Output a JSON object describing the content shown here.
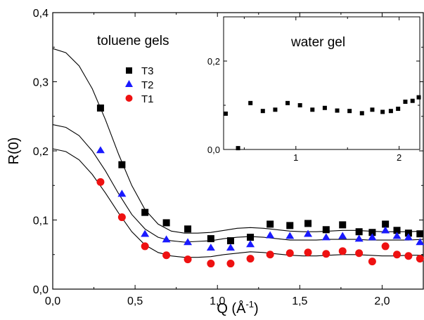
{
  "chart_data": [
    {
      "type": "scatter",
      "xlabel": "Q (Å",
      "xlabel_sup": "-1",
      "xlabel_close": ")",
      "ylabel": "R(0)",
      "xlim": [
        0.0,
        2.25
      ],
      "ylim": [
        0.0,
        0.4
      ],
      "x_ticks": [
        {
          "value": 0.0,
          "label": "0,0"
        },
        {
          "value": 0.5,
          "label": "0,5"
        },
        {
          "value": 1.0,
          "label": "1,0"
        },
        {
          "value": 1.5,
          "label": "1,5"
        },
        {
          "value": 2.0,
          "label": "2,0"
        }
      ],
      "y_ticks": [
        {
          "value": 0.0,
          "label": "0,0"
        },
        {
          "value": 0.1,
          "label": "0,1"
        },
        {
          "value": 0.2,
          "label": "0,2"
        },
        {
          "value": 0.3,
          "label": "0,3"
        },
        {
          "value": 0.4,
          "label": "0,4"
        }
      ],
      "annotation": "toluene gels",
      "legend_position": "top-left",
      "series": [
        {
          "name": "T3",
          "marker": "square",
          "color": "#000000",
          "points": [
            [
              0.29,
              0.262
            ],
            [
              0.42,
              0.18
            ],
            [
              0.56,
              0.111
            ],
            [
              0.69,
              0.096
            ],
            [
              0.82,
              0.087
            ],
            [
              0.96,
              0.073
            ],
            [
              1.08,
              0.07
            ],
            [
              1.2,
              0.075
            ],
            [
              1.32,
              0.094
            ],
            [
              1.44,
              0.092
            ],
            [
              1.55,
              0.095
            ],
            [
              1.66,
              0.086
            ],
            [
              1.76,
              0.093
            ],
            [
              1.86,
              0.083
            ],
            [
              1.94,
              0.082
            ],
            [
              2.02,
              0.094
            ],
            [
              2.09,
              0.085
            ],
            [
              2.16,
              0.081
            ],
            [
              2.23,
              0.08
            ]
          ]
        },
        {
          "name": "T2",
          "marker": "triangle",
          "color": "#1a1aff",
          "points": [
            [
              0.29,
              0.201
            ],
            [
              0.42,
              0.138
            ],
            [
              0.56,
              0.08
            ],
            [
              0.69,
              0.072
            ],
            [
              0.82,
              0.068
            ],
            [
              0.96,
              0.06
            ],
            [
              1.08,
              0.06
            ],
            [
              1.2,
              0.065
            ],
            [
              1.32,
              0.078
            ],
            [
              1.44,
              0.077
            ],
            [
              1.55,
              0.08
            ],
            [
              1.66,
              0.075
            ],
            [
              1.76,
              0.077
            ],
            [
              1.86,
              0.073
            ],
            [
              1.94,
              0.075
            ],
            [
              2.02,
              0.085
            ],
            [
              2.09,
              0.077
            ],
            [
              2.16,
              0.075
            ],
            [
              2.23,
              0.068
            ]
          ]
        },
        {
          "name": "T1",
          "marker": "circle",
          "color": "#ee1111",
          "points": [
            [
              0.29,
              0.155
            ],
            [
              0.42,
              0.104
            ],
            [
              0.56,
              0.062
            ],
            [
              0.69,
              0.049
            ],
            [
              0.82,
              0.043
            ],
            [
              0.96,
              0.037
            ],
            [
              1.08,
              0.037
            ],
            [
              1.2,
              0.044
            ],
            [
              1.32,
              0.05
            ],
            [
              1.44,
              0.052
            ],
            [
              1.55,
              0.053
            ],
            [
              1.66,
              0.051
            ],
            [
              1.76,
              0.055
            ],
            [
              1.86,
              0.052
            ],
            [
              1.94,
              0.04
            ],
            [
              2.02,
              0.062
            ],
            [
              2.09,
              0.05
            ],
            [
              2.16,
              0.048
            ],
            [
              2.23,
              0.044
            ]
          ]
        }
      ],
      "fit_curves": [
        {
          "points": [
            [
              0.0,
              0.348
            ],
            [
              0.08,
              0.342
            ],
            [
              0.16,
              0.323
            ],
            [
              0.24,
              0.29
            ],
            [
              0.32,
              0.245
            ],
            [
              0.4,
              0.195
            ],
            [
              0.48,
              0.15
            ],
            [
              0.56,
              0.115
            ],
            [
              0.64,
              0.094
            ],
            [
              0.72,
              0.084
            ],
            [
              0.8,
              0.081
            ],
            [
              0.88,
              0.081
            ],
            [
              0.96,
              0.082
            ],
            [
              1.04,
              0.085
            ],
            [
              1.12,
              0.088
            ],
            [
              1.2,
              0.089
            ],
            [
              1.28,
              0.088
            ],
            [
              1.36,
              0.086
            ],
            [
              1.44,
              0.084
            ],
            [
              1.52,
              0.083
            ],
            [
              1.6,
              0.083
            ],
            [
              1.68,
              0.084
            ],
            [
              1.76,
              0.085
            ],
            [
              1.84,
              0.085
            ],
            [
              1.92,
              0.084
            ],
            [
              2.0,
              0.083
            ],
            [
              2.08,
              0.083
            ],
            [
              2.16,
              0.083
            ],
            [
              2.25,
              0.084
            ]
          ]
        },
        {
          "points": [
            [
              0.0,
              0.238
            ],
            [
              0.08,
              0.234
            ],
            [
              0.16,
              0.222
            ],
            [
              0.24,
              0.2
            ],
            [
              0.32,
              0.171
            ],
            [
              0.4,
              0.138
            ],
            [
              0.48,
              0.108
            ],
            [
              0.56,
              0.087
            ],
            [
              0.64,
              0.075
            ],
            [
              0.72,
              0.07
            ],
            [
              0.8,
              0.068
            ],
            [
              0.88,
              0.069
            ],
            [
              0.96,
              0.07
            ],
            [
              1.04,
              0.073
            ],
            [
              1.12,
              0.075
            ],
            [
              1.2,
              0.076
            ],
            [
              1.28,
              0.075
            ],
            [
              1.36,
              0.073
            ],
            [
              1.44,
              0.071
            ],
            [
              1.52,
              0.071
            ],
            [
              1.6,
              0.071
            ],
            [
              1.68,
              0.072
            ],
            [
              1.76,
              0.072
            ],
            [
              1.84,
              0.072
            ],
            [
              1.92,
              0.071
            ],
            [
              2.0,
              0.071
            ],
            [
              2.08,
              0.071
            ],
            [
              2.16,
              0.071
            ],
            [
              2.25,
              0.072
            ]
          ]
        },
        {
          "points": [
            [
              0.0,
              0.203
            ],
            [
              0.08,
              0.199
            ],
            [
              0.16,
              0.187
            ],
            [
              0.24,
              0.166
            ],
            [
              0.32,
              0.139
            ],
            [
              0.4,
              0.11
            ],
            [
              0.48,
              0.083
            ],
            [
              0.56,
              0.064
            ],
            [
              0.64,
              0.053
            ],
            [
              0.72,
              0.048
            ],
            [
              0.8,
              0.046
            ],
            [
              0.88,
              0.046
            ],
            [
              0.96,
              0.047
            ],
            [
              1.04,
              0.05
            ],
            [
              1.12,
              0.052
            ],
            [
              1.2,
              0.054
            ],
            [
              1.28,
              0.053
            ],
            [
              1.36,
              0.051
            ],
            [
              1.44,
              0.049
            ],
            [
              1.52,
              0.048
            ],
            [
              1.6,
              0.048
            ],
            [
              1.68,
              0.049
            ],
            [
              1.76,
              0.05
            ],
            [
              1.84,
              0.05
            ],
            [
              1.92,
              0.049
            ],
            [
              2.0,
              0.048
            ],
            [
              2.08,
              0.048
            ],
            [
              2.16,
              0.049
            ],
            [
              2.25,
              0.049
            ]
          ]
        }
      ]
    },
    {
      "type": "scatter",
      "annotation": "water gel",
      "xlim": [
        0.3,
        2.2
      ],
      "ylim": [
        0.0,
        0.3
      ],
      "x_ticks": [
        {
          "value": 1.0,
          "label": "1"
        },
        {
          "value": 2.0,
          "label": "2"
        }
      ],
      "y_ticks": [
        {
          "value": 0.0,
          "label": "0,0"
        },
        {
          "value": 0.2,
          "label": "0,2"
        }
      ],
      "series": [
        {
          "marker": "square",
          "color": "#000000",
          "points": [
            [
              0.32,
              0.081
            ],
            [
              0.44,
              0.003
            ],
            [
              0.56,
              0.105
            ],
            [
              0.68,
              0.087
            ],
            [
              0.8,
              0.09
            ],
            [
              0.92,
              0.105
            ],
            [
              1.04,
              0.1
            ],
            [
              1.16,
              0.09
            ],
            [
              1.28,
              0.094
            ],
            [
              1.4,
              0.088
            ],
            [
              1.52,
              0.087
            ],
            [
              1.64,
              0.082
            ],
            [
              1.74,
              0.09
            ],
            [
              1.84,
              0.085
            ],
            [
              1.92,
              0.087
            ],
            [
              1.99,
              0.092
            ],
            [
              2.06,
              0.108
            ],
            [
              2.13,
              0.11
            ],
            [
              2.19,
              0.118
            ]
          ]
        }
      ]
    }
  ]
}
